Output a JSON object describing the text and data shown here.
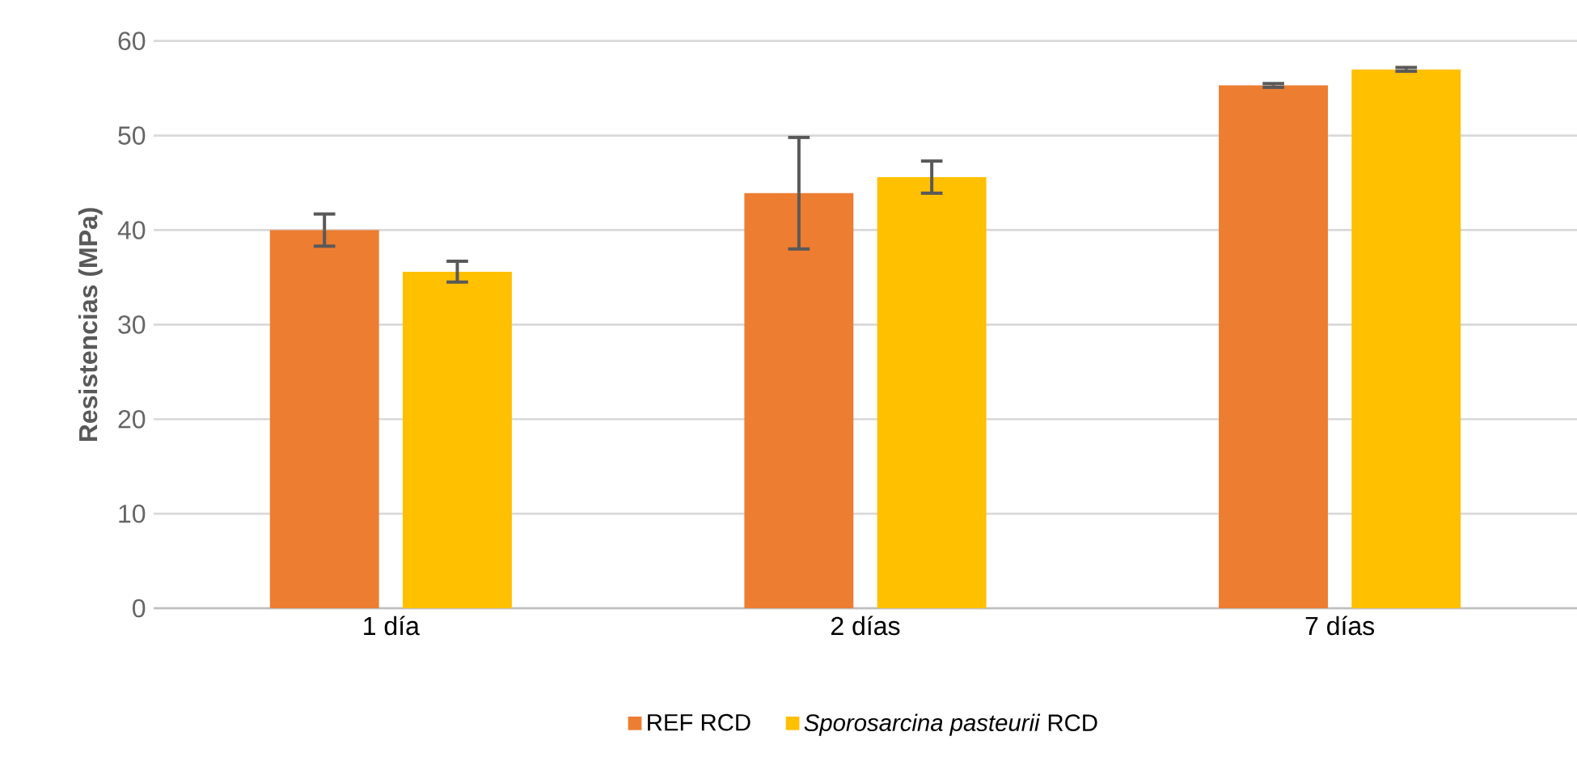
{
  "chart_data": {
    "type": "bar",
    "ylabel": "Resistencias (MPa)",
    "categories": [
      "1 día",
      "2 días",
      "7 días"
    ],
    "series": [
      {
        "name": "REF RCD",
        "color": "#ed7d31",
        "values": [
          40.0,
          43.9,
          55.3
        ],
        "errors": [
          1.7,
          5.9,
          0.2
        ]
      },
      {
        "name": "*Sporosarcina pasteurii* RCD",
        "color": "#ffc000",
        "values": [
          35.6,
          45.6,
          57.0
        ],
        "errors": [
          1.1,
          1.7,
          0.2
        ]
      }
    ],
    "ylim": [
      0,
      60
    ],
    "yticks": [
      0,
      10,
      20,
      30,
      40,
      50,
      60
    ],
    "grid": "y",
    "legend": "bottom"
  }
}
